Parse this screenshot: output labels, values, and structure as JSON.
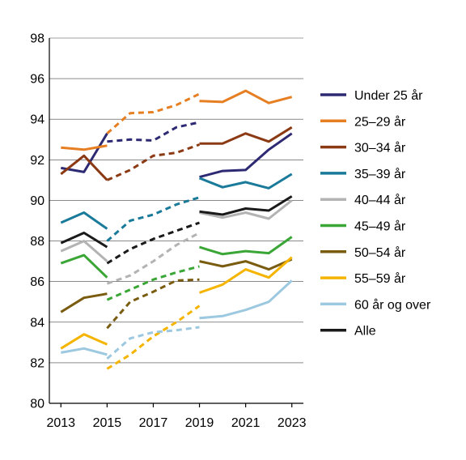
{
  "chart_data": {
    "type": "line",
    "title": "",
    "xlabel": "",
    "ylabel": "",
    "xlim": [
      2012.5,
      2023.5
    ],
    "ylim": [
      80,
      98
    ],
    "x_ticks": [
      "2013",
      "2015",
      "2017",
      "2019",
      "2021",
      "2023"
    ],
    "y_ticks": [
      "80",
      "82",
      "84",
      "86",
      "88",
      "90",
      "92",
      "94",
      "96",
      "98"
    ],
    "grid": "horizontal",
    "legend_position": "right",
    "series": [
      {
        "name": "Under 25 år",
        "color": "#2d2a73",
        "segments": [
          {
            "style": "solid",
            "x": [
              2013,
              2014,
              2015
            ],
            "y": [
              91.6,
              91.4,
              93.3
            ]
          },
          {
            "style": "dashed",
            "x": [
              2015,
              2016,
              2017,
              2018,
              2019
            ],
            "y": [
              92.9,
              93.0,
              92.95,
              93.6,
              93.85
            ]
          },
          {
            "style": "solid",
            "x": [
              2019,
              2020,
              2021,
              2022,
              2023
            ],
            "y": [
              91.15,
              91.45,
              91.5,
              92.5,
              93.3
            ]
          }
        ]
      },
      {
        "name": "25–29 år",
        "color": "#e67e22",
        "segments": [
          {
            "style": "solid",
            "x": [
              2013,
              2014,
              2015
            ],
            "y": [
              92.6,
              92.5,
              92.7
            ]
          },
          {
            "style": "dashed",
            "x": [
              2015,
              2016,
              2017,
              2018,
              2019
            ],
            "y": [
              93.3,
              94.3,
              94.35,
              94.7,
              95.25
            ]
          },
          {
            "style": "solid",
            "x": [
              2019,
              2020,
              2021,
              2022,
              2023
            ],
            "y": [
              94.9,
              94.85,
              95.4,
              94.8,
              95.1
            ]
          }
        ]
      },
      {
        "name": "30–34 år",
        "color": "#8b3a14",
        "segments": [
          {
            "style": "solid",
            "x": [
              2013,
              2014,
              2015
            ],
            "y": [
              91.3,
              92.2,
              91.0
            ]
          },
          {
            "style": "dashed",
            "x": [
              2015,
              2016,
              2017,
              2018,
              2019
            ],
            "y": [
              91.0,
              91.5,
              92.2,
              92.35,
              92.75
            ]
          },
          {
            "style": "solid",
            "x": [
              2019,
              2020,
              2021,
              2022,
              2023
            ],
            "y": [
              92.8,
              92.8,
              93.3,
              92.9,
              93.6
            ]
          }
        ]
      },
      {
        "name": "35–39 år",
        "color": "#1a7a9a",
        "segments": [
          {
            "style": "solid",
            "x": [
              2013,
              2014,
              2015
            ],
            "y": [
              88.9,
              89.4,
              88.6
            ]
          },
          {
            "style": "dashed",
            "x": [
              2015,
              2016,
              2017,
              2018,
              2019
            ],
            "y": [
              88.0,
              89.0,
              89.3,
              89.8,
              90.15
            ]
          },
          {
            "style": "solid",
            "x": [
              2019,
              2020,
              2021,
              2022,
              2023
            ],
            "y": [
              91.1,
              90.65,
              90.9,
              90.6,
              91.3
            ]
          }
        ]
      },
      {
        "name": "40–44 år",
        "color": "#b3b3b3",
        "segments": [
          {
            "style": "solid",
            "x": [
              2013,
              2014,
              2015
            ],
            "y": [
              87.5,
              88.0,
              87.0
            ]
          },
          {
            "style": "dashed",
            "x": [
              2015,
              2016,
              2017,
              2018,
              2019
            ],
            "y": [
              85.9,
              86.3,
              87.0,
              87.8,
              88.4
            ]
          },
          {
            "style": "solid",
            "x": [
              2019,
              2020,
              2021,
              2022,
              2023
            ],
            "y": [
              89.4,
              89.15,
              89.4,
              89.1,
              90.0
            ]
          }
        ]
      },
      {
        "name": "45–49 år",
        "color": "#3aa635",
        "segments": [
          {
            "style": "solid",
            "x": [
              2013,
              2014,
              2015
            ],
            "y": [
              86.9,
              87.3,
              86.2
            ]
          },
          {
            "style": "dashed",
            "x": [
              2015,
              2016,
              2017,
              2018,
              2019
            ],
            "y": [
              85.1,
              85.6,
              86.1,
              86.45,
              86.75
            ]
          },
          {
            "style": "solid",
            "x": [
              2019,
              2020,
              2021,
              2022,
              2023
            ],
            "y": [
              87.7,
              87.35,
              87.5,
              87.4,
              88.2
            ]
          }
        ]
      },
      {
        "name": "50–54 år",
        "color": "#7a5c10",
        "segments": [
          {
            "style": "solid",
            "x": [
              2013,
              2014,
              2015
            ],
            "y": [
              84.5,
              85.2,
              85.4
            ]
          },
          {
            "style": "dashed",
            "x": [
              2015,
              2016,
              2017,
              2018,
              2019
            ],
            "y": [
              83.7,
              85.0,
              85.5,
              86.05,
              86.1
            ]
          },
          {
            "style": "solid",
            "x": [
              2019,
              2020,
              2021,
              2022,
              2023
            ],
            "y": [
              87.0,
              86.75,
              87.0,
              86.6,
              87.1
            ]
          }
        ]
      },
      {
        "name": "55–59 år",
        "color": "#f5b400",
        "segments": [
          {
            "style": "solid",
            "x": [
              2013,
              2014,
              2015
            ],
            "y": [
              82.7,
              83.4,
              82.9
            ]
          },
          {
            "style": "dashed",
            "x": [
              2015,
              2016,
              2017,
              2018,
              2019
            ],
            "y": [
              81.7,
              82.4,
              83.3,
              84.0,
              84.8
            ]
          },
          {
            "style": "solid",
            "x": [
              2019,
              2020,
              2021,
              2022,
              2023
            ],
            "y": [
              85.45,
              85.85,
              86.6,
              86.2,
              87.2
            ]
          }
        ]
      },
      {
        "name": "60 år og over",
        "color": "#9cc8e0",
        "segments": [
          {
            "style": "solid",
            "x": [
              2013,
              2014,
              2015
            ],
            "y": [
              82.5,
              82.7,
              82.4
            ]
          },
          {
            "style": "dashed",
            "x": [
              2015,
              2016,
              2017,
              2018,
              2019
            ],
            "y": [
              82.2,
              83.2,
              83.5,
              83.6,
              83.75
            ]
          },
          {
            "style": "solid",
            "x": [
              2019,
              2020,
              2021,
              2022,
              2023
            ],
            "y": [
              84.2,
              84.3,
              84.6,
              85.0,
              86.05
            ]
          }
        ]
      },
      {
        "name": "Alle",
        "color": "#1a1a1a",
        "segments": [
          {
            "style": "solid",
            "x": [
              2013,
              2014,
              2015
            ],
            "y": [
              87.9,
              88.4,
              87.7
            ]
          },
          {
            "style": "dashed",
            "x": [
              2015,
              2016,
              2017,
              2018,
              2019
            ],
            "y": [
              86.9,
              87.6,
              88.1,
              88.5,
              88.9
            ]
          },
          {
            "style": "solid",
            "x": [
              2019,
              2020,
              2021,
              2022,
              2023
            ],
            "y": [
              89.45,
              89.3,
              89.6,
              89.5,
              90.2
            ]
          }
        ]
      }
    ]
  }
}
